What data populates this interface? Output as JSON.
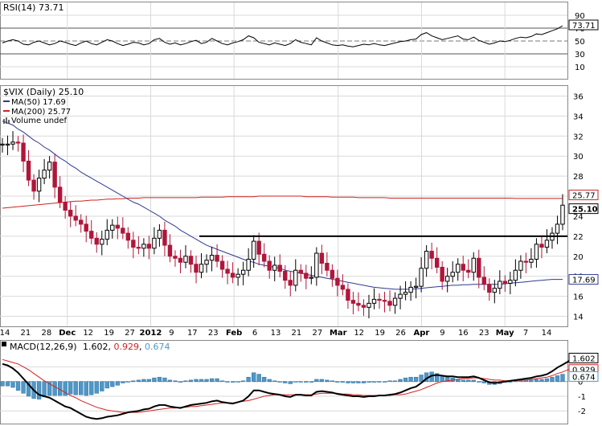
{
  "colors": {
    "grid": "#d9d9d9",
    "frame": "#888888",
    "up": "#000000",
    "down": "#b0163a",
    "ma50": "#2f3a8f",
    "ma200": "#d22222",
    "macd": "#000000",
    "signal": "#d22222",
    "histogram": "#4f97c8",
    "rsi": "#000000",
    "support": "#000000"
  },
  "rsi_panel": {
    "label": "RSI(14) 73.71",
    "value_badge": "73.71",
    "ticks": [
      "90",
      "70",
      "50",
      "30",
      "10"
    ],
    "tick_values": [
      90,
      70,
      50,
      30,
      10
    ]
  },
  "price_panel": {
    "title": "$VIX (Daily) 25.10",
    "legend": {
      "ma50": "MA(50) 17.69",
      "ma200": "MA(200) 25.77",
      "volume": "Volume undef"
    },
    "ticks": [
      "36",
      "34",
      "32",
      "30",
      "28",
      "26",
      "24",
      "22",
      "20",
      "18",
      "16",
      "14"
    ],
    "tick_values": [
      36,
      34,
      32,
      30,
      28,
      26,
      24,
      22,
      20,
      18,
      16,
      14
    ],
    "badges": {
      "ma200": "25.77",
      "last": "25.10",
      "ma50": "17.69"
    },
    "badge_values": {
      "ma200": 25.77,
      "last": 25.1,
      "ma50": 17.69
    },
    "support_level": 22
  },
  "x_axis": {
    "labels": [
      "14",
      "21",
      "28",
      "Dec",
      "12",
      "19",
      "27",
      "2012",
      "9",
      "17",
      "23",
      "Feb",
      "6",
      "13",
      "21",
      "27",
      "Mar",
      "12",
      "19",
      "26",
      "Apr",
      "9",
      "16",
      "23",
      "May",
      "7",
      "14"
    ],
    "bold": [
      "Dec",
      "2012",
      "Feb",
      "Mar",
      "Apr",
      "May"
    ]
  },
  "macd_panel": {
    "label": "MACD(12,26,9)",
    "macd_value": "1.602",
    "signal_value": "0.929",
    "hist_value": "0.674",
    "badges": {
      "macd": "1.602",
      "signal": "0.929",
      "hist": "0.674"
    },
    "badge_values": {
      "macd": 1.602,
      "signal": 0.929,
      "hist": 0.674
    },
    "ticks": [
      "1",
      "0",
      "-1",
      "-2"
    ],
    "tick_values": [
      1,
      0,
      -1,
      -2
    ]
  },
  "chart_data": {
    "type": "candlestick",
    "title": "$VIX (Daily) 25.10",
    "ylim": [
      13,
      37
    ],
    "close": [
      31.2,
      31.2,
      31.4,
      31.3,
      29.5,
      27.6,
      26.5,
      27.8,
      28.6,
      29.4,
      26.9,
      25.4,
      24.6,
      24.0,
      23.6,
      23.2,
      22.5,
      21.8,
      21.2,
      21.7,
      22.6,
      23.1,
      22.8,
      22.3,
      21.6,
      20.9,
      20.8,
      21.2,
      20.8,
      21.8,
      22.6,
      21.1,
      20.0,
      19.8,
      19.4,
      20.0,
      19.2,
      18.4,
      19.2,
      19.6,
      20.1,
      19.5,
      18.7,
      18.3,
      17.9,
      18.2,
      18.6,
      19.7,
      21.5,
      20.2,
      19.5,
      18.6,
      19.1,
      18.5,
      17.6,
      17.1,
      18.6,
      18.3,
      17.8,
      17.9,
      20.3,
      19.3,
      18.6,
      17.8,
      17.1,
      16.7,
      15.6,
      15.3,
      15.1,
      14.9,
      15.3,
      15.7,
      15.6,
      15.5,
      15.1,
      15.8,
      16.2,
      16.4,
      16.9,
      17.0,
      18.8,
      20.5,
      19.8,
      18.9,
      17.5,
      18.0,
      18.4,
      19.2,
      18.6,
      18.4,
      19.8,
      17.9,
      17.2,
      16.4,
      16.8,
      17.5,
      17.3,
      17.6,
      18.6,
      19.5,
      19.4,
      19.7,
      21.2,
      20.9,
      21.6,
      22.3,
      23.2,
      25.1
    ],
    "ma50": [
      33.5,
      33.3,
      33.1,
      32.7,
      32.4,
      32.0,
      31.6,
      31.3,
      30.9,
      30.6,
      30.2,
      29.8,
      29.5,
      29.1,
      28.8,
      28.4,
      28.1,
      27.8,
      27.5,
      27.2,
      26.9,
      26.6,
      26.3,
      26.0,
      25.7,
      25.4,
      25.2,
      24.9,
      24.6,
      24.3,
      24.0,
      23.6,
      23.3,
      23.0,
      22.6,
      22.3,
      22.0,
      21.7,
      21.4,
      21.1,
      20.9,
      20.7,
      20.5,
      20.3,
      20.1,
      19.9,
      19.7,
      19.5,
      19.4,
      19.2,
      19.1,
      19.0,
      18.9,
      18.8,
      18.6,
      18.5,
      18.4,
      18.3,
      18.2,
      18.1,
      18.0,
      17.9,
      17.8,
      17.7,
      17.6,
      17.5,
      17.4,
      17.3,
      17.2,
      17.1,
      17.0,
      16.9,
      16.85,
      16.8,
      16.75,
      16.7,
      16.7,
      16.7,
      16.7,
      16.75,
      16.8,
      16.85,
      16.9,
      16.95,
      17.0,
      17.05,
      17.1,
      17.1,
      17.15,
      17.15,
      17.2,
      17.2,
      17.2,
      17.2,
      17.2,
      17.2,
      17.25,
      17.3,
      17.35,
      17.4,
      17.45,
      17.5,
      17.55,
      17.6,
      17.65,
      17.69,
      17.69,
      17.69
    ],
    "ma200": [
      24.8,
      24.85,
      24.9,
      24.95,
      25.0,
      25.05,
      25.1,
      25.15,
      25.2,
      25.25,
      25.3,
      25.35,
      25.4,
      25.45,
      25.5,
      25.5,
      25.55,
      25.6,
      25.6,
      25.65,
      25.7,
      25.7,
      25.75,
      25.75,
      25.8,
      25.8,
      25.8,
      25.85,
      25.85,
      25.85,
      25.85,
      25.85,
      25.85,
      25.85,
      25.85,
      25.85,
      25.85,
      25.85,
      25.9,
      25.9,
      25.9,
      25.9,
      25.9,
      25.95,
      25.95,
      25.95,
      25.95,
      25.95,
      25.95,
      26.0,
      26.0,
      26.0,
      26.0,
      26.0,
      26.0,
      26.0,
      26.0,
      26.0,
      25.95,
      25.95,
      25.95,
      25.95,
      25.95,
      25.9,
      25.9,
      25.9,
      25.9,
      25.9,
      25.85,
      25.85,
      25.85,
      25.85,
      25.85,
      25.85,
      25.8,
      25.8,
      25.8,
      25.8,
      25.8,
      25.8,
      25.8,
      25.8,
      25.8,
      25.8,
      25.8,
      25.8,
      25.8,
      25.8,
      25.8,
      25.8,
      25.8,
      25.8,
      25.8,
      25.8,
      25.8,
      25.8,
      25.8,
      25.8,
      25.77,
      25.77,
      25.77,
      25.77,
      25.77,
      25.77,
      25.77,
      25.77,
      25.77,
      25.77
    ],
    "rsi": [
      47,
      50,
      52,
      50,
      45,
      44,
      48,
      50,
      47,
      44,
      46,
      50,
      48,
      45,
      43,
      47,
      50,
      46,
      44,
      48,
      52,
      50,
      46,
      43,
      45,
      48,
      47,
      44,
      46,
      52,
      54,
      48,
      45,
      47,
      44,
      46,
      49,
      51,
      46,
      48,
      54,
      50,
      46,
      44,
      47,
      49,
      52,
      58,
      55,
      48,
      46,
      44,
      47,
      45,
      43,
      46,
      52,
      48,
      46,
      44,
      55,
      50,
      47,
      44,
      43,
      44,
      42,
      41,
      43,
      45,
      44,
      46,
      44,
      43,
      45,
      47,
      49,
      50,
      52,
      53,
      60,
      63,
      58,
      55,
      52,
      54,
      56,
      58,
      53,
      52,
      56,
      51,
      48,
      45,
      47,
      50,
      49,
      51,
      54,
      56,
      55,
      57,
      61,
      60,
      63,
      66,
      69,
      73.71
    ],
    "macd": [
      1.2,
      1.1,
      0.9,
      0.6,
      0.2,
      -0.2,
      -0.6,
      -0.9,
      -1.0,
      -1.1,
      -1.3,
      -1.5,
      -1.7,
      -1.8,
      -2.0,
      -2.2,
      -2.4,
      -2.5,
      -2.55,
      -2.5,
      -2.4,
      -2.35,
      -2.3,
      -2.2,
      -2.1,
      -2.05,
      -2.0,
      -1.9,
      -1.85,
      -1.7,
      -1.6,
      -1.6,
      -1.7,
      -1.75,
      -1.8,
      -1.7,
      -1.6,
      -1.55,
      -1.5,
      -1.45,
      -1.35,
      -1.3,
      -1.4,
      -1.45,
      -1.5,
      -1.4,
      -1.3,
      -1.0,
      -0.6,
      -0.6,
      -0.7,
      -0.8,
      -0.85,
      -0.9,
      -1.0,
      -1.05,
      -0.9,
      -0.9,
      -0.95,
      -0.95,
      -0.7,
      -0.65,
      -0.7,
      -0.75,
      -0.85,
      -0.9,
      -0.95,
      -1.0,
      -1.0,
      -1.05,
      -1.0,
      -1.0,
      -0.95,
      -0.95,
      -0.9,
      -0.85,
      -0.75,
      -0.6,
      -0.45,
      -0.35,
      -0.1,
      0.2,
      0.4,
      0.45,
      0.4,
      0.35,
      0.35,
      0.3,
      0.3,
      0.3,
      0.35,
      0.25,
      0.1,
      -0.05,
      -0.1,
      -0.05,
      0.0,
      0.05,
      0.1,
      0.15,
      0.2,
      0.25,
      0.35,
      0.4,
      0.5,
      0.7,
      0.95,
      1.15,
      1.35,
      1.602
    ],
    "signal": [
      1.5,
      1.4,
      1.3,
      1.2,
      1.0,
      0.8,
      0.55,
      0.3,
      0.05,
      -0.15,
      -0.35,
      -0.55,
      -0.75,
      -0.95,
      -1.1,
      -1.3,
      -1.45,
      -1.6,
      -1.75,
      -1.85,
      -1.95,
      -2.0,
      -2.05,
      -2.1,
      -2.1,
      -2.1,
      -2.1,
      -2.05,
      -2.0,
      -1.95,
      -1.9,
      -1.85,
      -1.8,
      -1.8,
      -1.75,
      -1.75,
      -1.7,
      -1.7,
      -1.65,
      -1.6,
      -1.55,
      -1.5,
      -1.45,
      -1.45,
      -1.45,
      -1.4,
      -1.35,
      -1.3,
      -1.2,
      -1.1,
      -1.0,
      -0.95,
      -0.9,
      -0.9,
      -0.9,
      -0.9,
      -0.9,
      -0.9,
      -0.9,
      -0.9,
      -0.85,
      -0.8,
      -0.8,
      -0.8,
      -0.8,
      -0.85,
      -0.85,
      -0.9,
      -0.9,
      -0.95,
      -0.95,
      -0.95,
      -0.95,
      -0.95,
      -0.95,
      -0.9,
      -0.9,
      -0.85,
      -0.75,
      -0.65,
      -0.55,
      -0.4,
      -0.25,
      -0.1,
      0.0,
      0.05,
      0.1,
      0.15,
      0.2,
      0.2,
      0.25,
      0.25,
      0.2,
      0.15,
      0.1,
      0.1,
      0.05,
      0.05,
      0.05,
      0.1,
      0.1,
      0.15,
      0.2,
      0.25,
      0.3,
      0.4,
      0.55,
      0.65,
      0.8,
      0.929
    ]
  }
}
